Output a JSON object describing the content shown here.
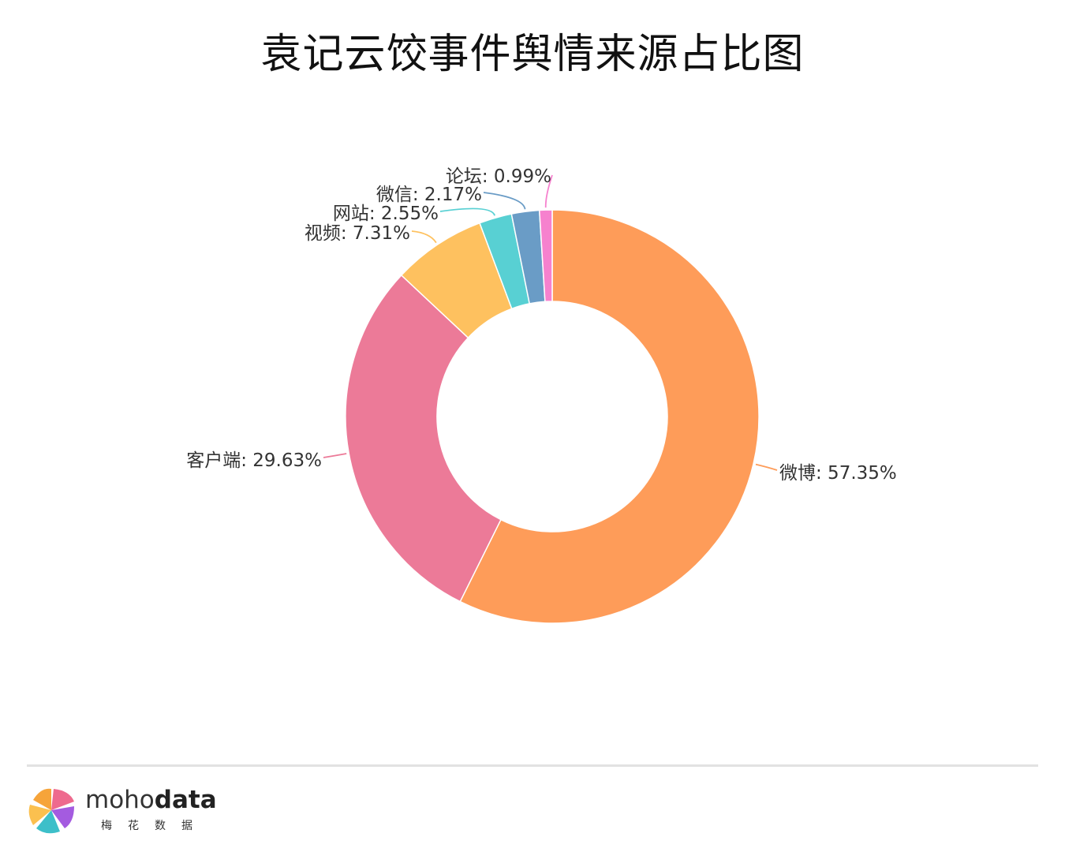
{
  "chart_data": {
    "type": "pie",
    "title": "袁记云饺事件舆情来源占比图",
    "donut": true,
    "categories": [
      "微博",
      "客户端",
      "视频",
      "网站",
      "微信",
      "论坛"
    ],
    "values": [
      57.35,
      29.63,
      7.31,
      2.55,
      2.17,
      0.99
    ],
    "unit": "%",
    "labels": [
      "微博: 57.35%",
      "客户端: 29.63%",
      "视频: 7.31%",
      "网站: 2.55%",
      "微信: 2.17%",
      "论坛: 0.99%"
    ],
    "colors": [
      "#FE9C59",
      "#EC7A98",
      "#FEC15F",
      "#58D0D3",
      "#6A9CC6",
      "#F681CE"
    ]
  },
  "brand": {
    "name_light": "moho",
    "name_bold": "data",
    "subtitle": "梅花数据"
  }
}
